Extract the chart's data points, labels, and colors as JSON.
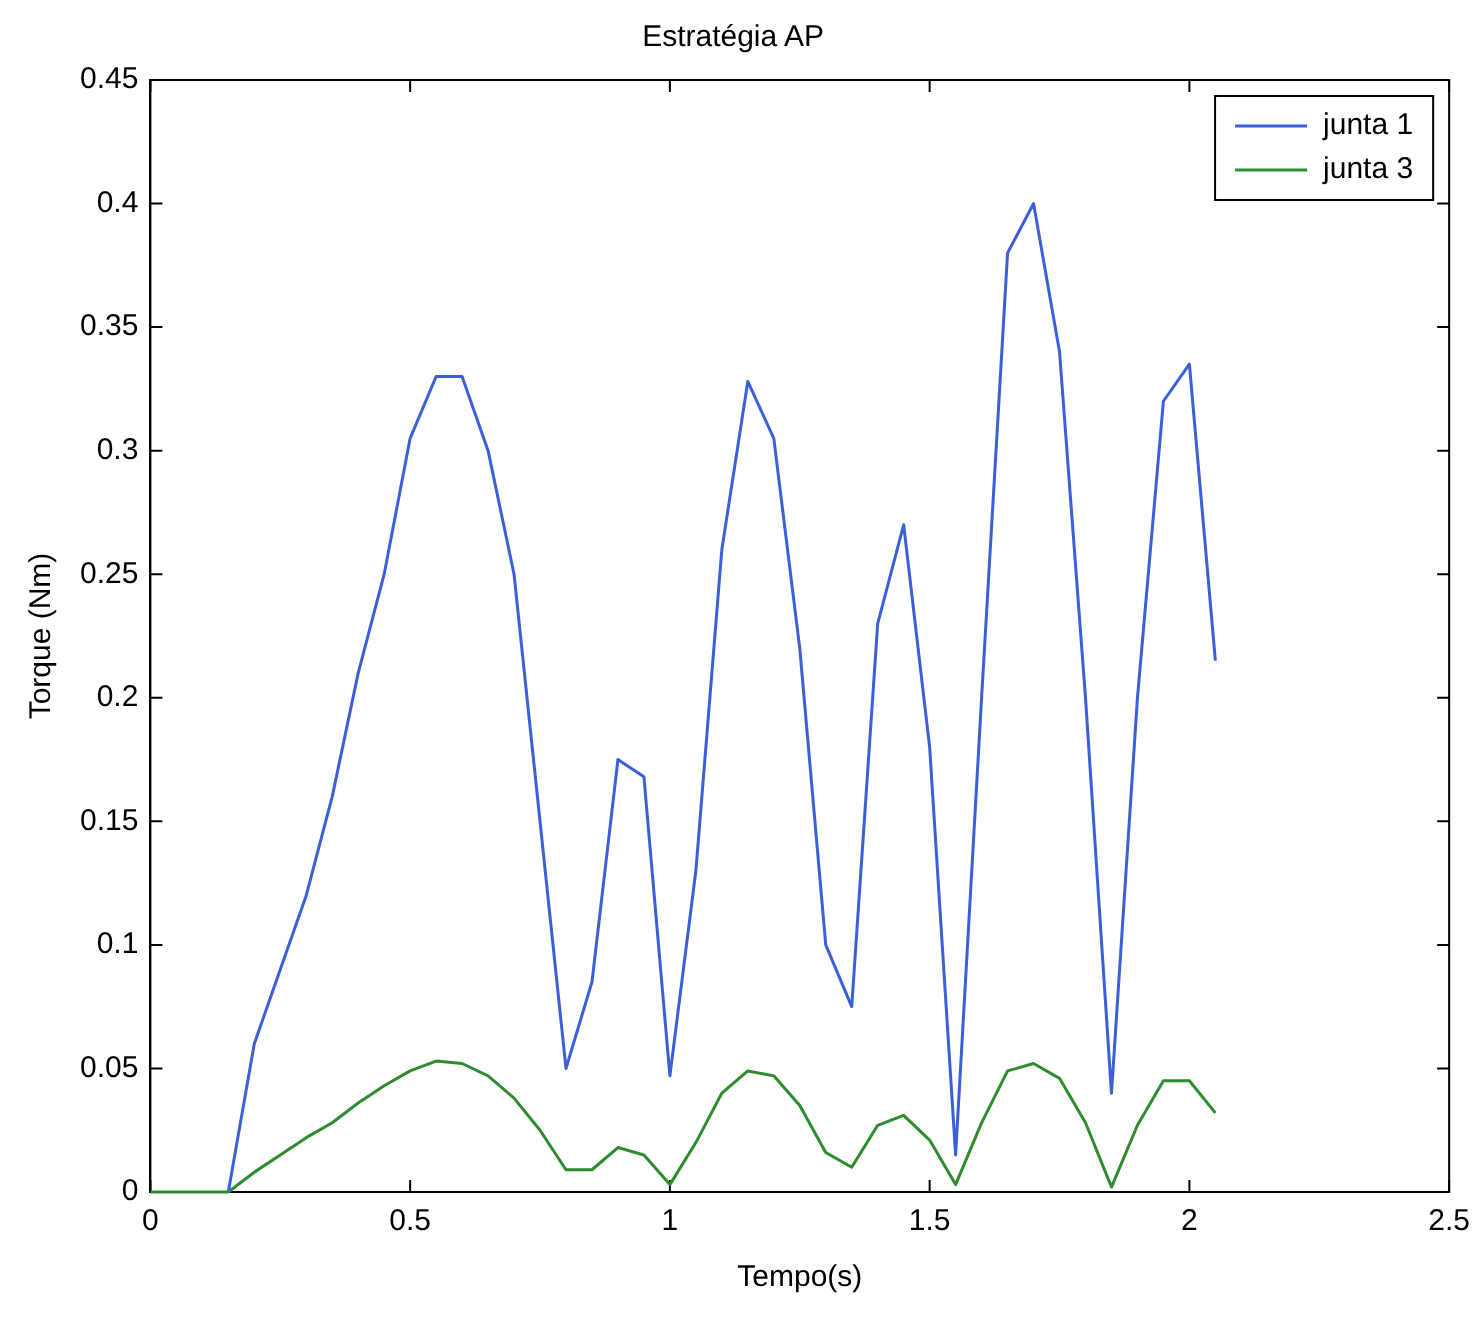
{
  "chart_data": {
    "type": "line",
    "title": "Estratégia AP",
    "xlabel": "Tempo(s)",
    "ylabel": "Torque (Nm)",
    "x": [
      0,
      0.05,
      0.1,
      0.15,
      0.2,
      0.25,
      0.3,
      0.35,
      0.4,
      0.45,
      0.5,
      0.55,
      0.6,
      0.65,
      0.7,
      0.75,
      0.8,
      0.85,
      0.9,
      0.95,
      1.0,
      1.05,
      1.1,
      1.15,
      1.2,
      1.25,
      1.3,
      1.35,
      1.4,
      1.45,
      1.5,
      1.55,
      1.6,
      1.65,
      1.7,
      1.75,
      1.8,
      1.85,
      1.9,
      1.95,
      2.0,
      2.05
    ],
    "series": [
      {
        "name": "junta 1",
        "color": "#3a5fd8",
        "values": [
          null,
          null,
          null,
          0,
          0.06,
          0.09,
          0.12,
          0.16,
          0.21,
          0.25,
          0.305,
          0.33,
          0.33,
          0.3,
          0.25,
          0.15,
          0.05,
          0.085,
          0.175,
          0.168,
          0.047,
          0.13,
          0.26,
          0.328,
          0.305,
          0.22,
          0.1,
          0.075,
          0.23,
          0.27,
          0.18,
          0.015,
          0.2,
          0.38,
          0.4,
          0.34,
          0.2,
          0.04,
          0.2,
          0.32,
          0.335,
          0.215
        ]
      },
      {
        "name": "junta 3",
        "color": "#2e8b2e",
        "values": [
          0,
          0,
          0,
          0,
          0.008,
          0.015,
          0.022,
          0.028,
          0.036,
          0.043,
          0.049,
          0.053,
          0.052,
          0.047,
          0.038,
          0.025,
          0.009,
          0.009,
          0.018,
          0.015,
          0.003,
          0.02,
          0.04,
          0.049,
          0.047,
          0.035,
          0.016,
          0.01,
          0.027,
          0.031,
          0.021,
          0.003,
          0.028,
          0.049,
          0.052,
          0.046,
          0.028,
          0.002,
          0.027,
          0.045,
          0.045,
          0.032
        ]
      }
    ],
    "xlim": [
      0,
      2.5
    ],
    "xticks": [
      0,
      0.5,
      1,
      1.5,
      2,
      2.5
    ],
    "ylim": [
      0,
      0.45
    ],
    "yticks": [
      0,
      0.05,
      0.1,
      0.15,
      0.2,
      0.25,
      0.3,
      0.35,
      0.4,
      0.45
    ],
    "legend": "top right",
    "grid": false,
    "marker": "none",
    "line_style": "solid"
  }
}
